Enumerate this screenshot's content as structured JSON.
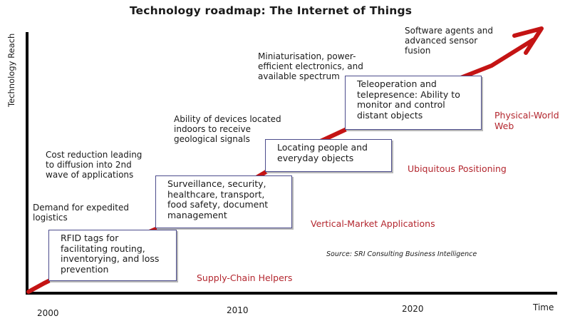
{
  "title": "Technology roadmap: The Internet of Things",
  "axes": {
    "y_label": "Technology Reach",
    "x_label": "Time",
    "ticks": [
      "2000",
      "2010",
      "2020"
    ]
  },
  "colors": {
    "arrow": "#c41414",
    "box_border": "#4c4c8c",
    "stage_text": "#b3262e"
  },
  "notes": [
    {
      "id": "demand",
      "text": "Demand for expedited\nlogistics"
    },
    {
      "id": "cost",
      "text": "Cost reduction leading\nto diffusion into 2nd\nwave of applications"
    },
    {
      "id": "indoors",
      "text": "Ability of devices located\nindoors to receive\ngeological signals"
    },
    {
      "id": "miniaturisation",
      "text": "Miniaturisation, power-\nefficient electronics, and\navailable spectrum"
    },
    {
      "id": "agents",
      "text": "Software agents and\nadvanced sensor\nfusion"
    }
  ],
  "boxes": [
    {
      "id": "rfid",
      "text": "RFID tags for\nfacilitating routing,\ninventorying, and loss\nprevention"
    },
    {
      "id": "surveillance",
      "text": "Surveillance, security,\nhealthcare, transport,\nfood safety, document\nmanagement"
    },
    {
      "id": "locating",
      "text": "Locating people and\neveryday objects"
    },
    {
      "id": "teleoperation",
      "text": "Teleoperation and\ntelepresence: Ability to\nmonitor and control\ndistant objects"
    }
  ],
  "stages": [
    {
      "id": "supply",
      "text": "Supply-Chain Helpers"
    },
    {
      "id": "vertical",
      "text": "Vertical-Market Applications"
    },
    {
      "id": "ubiquitous",
      "text": "Ubiquitous Positioning"
    },
    {
      "id": "physical",
      "text": "Physical-World\nWeb"
    }
  ],
  "source": "Source: SRI Consulting Business Intelligence"
}
